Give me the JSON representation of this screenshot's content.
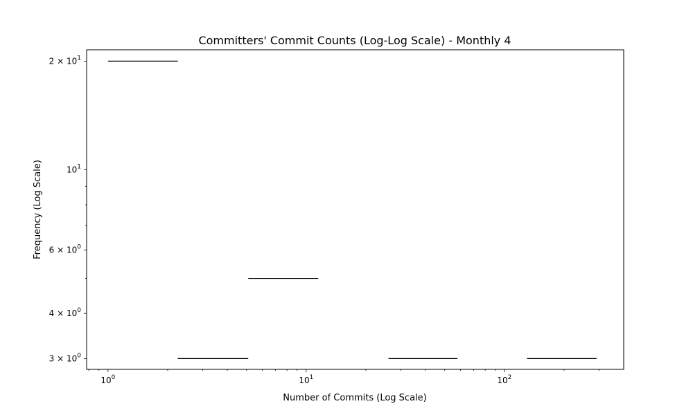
{
  "chart_data": {
    "type": "bar",
    "title": "Committers' Commit Counts (Log-Log Scale) - Monthly 4",
    "xlabel": "Number of Commits (Log Scale)",
    "ylabel": "Frequency (Log Scale)",
    "xscale": "log",
    "yscale": "log",
    "xlim": [
      0.78,
      400
    ],
    "ylim": [
      2.8,
      21.5
    ],
    "grid": false,
    "legend": "none",
    "bar_color": "#000000",
    "bins": [
      {
        "x_start": 1.0,
        "x_end": 2.25,
        "frequency": 20
      },
      {
        "x_start": 2.25,
        "x_end": 5.1,
        "frequency": 3
      },
      {
        "x_start": 5.1,
        "x_end": 11.5,
        "frequency": 5
      },
      {
        "x_start": 26,
        "x_end": 58,
        "frequency": 3
      },
      {
        "x_start": 130,
        "x_end": 292,
        "frequency": 3
      }
    ],
    "x_ticks": [
      {
        "value": 1,
        "base": "10",
        "exp": "0"
      },
      {
        "value": 10,
        "base": "10",
        "exp": "1"
      },
      {
        "value": 100,
        "base": "10",
        "exp": "2"
      }
    ],
    "y_ticks": [
      {
        "value": 20,
        "base": "2 × 10",
        "exp": "1"
      },
      {
        "value": 10,
        "base": "10",
        "exp": "1"
      },
      {
        "value": 6,
        "base": "6 × 10",
        "exp": "0"
      },
      {
        "value": 4,
        "base": "4 × 10",
        "exp": "0"
      },
      {
        "value": 3,
        "base": "3 × 10",
        "exp": "0"
      }
    ]
  }
}
